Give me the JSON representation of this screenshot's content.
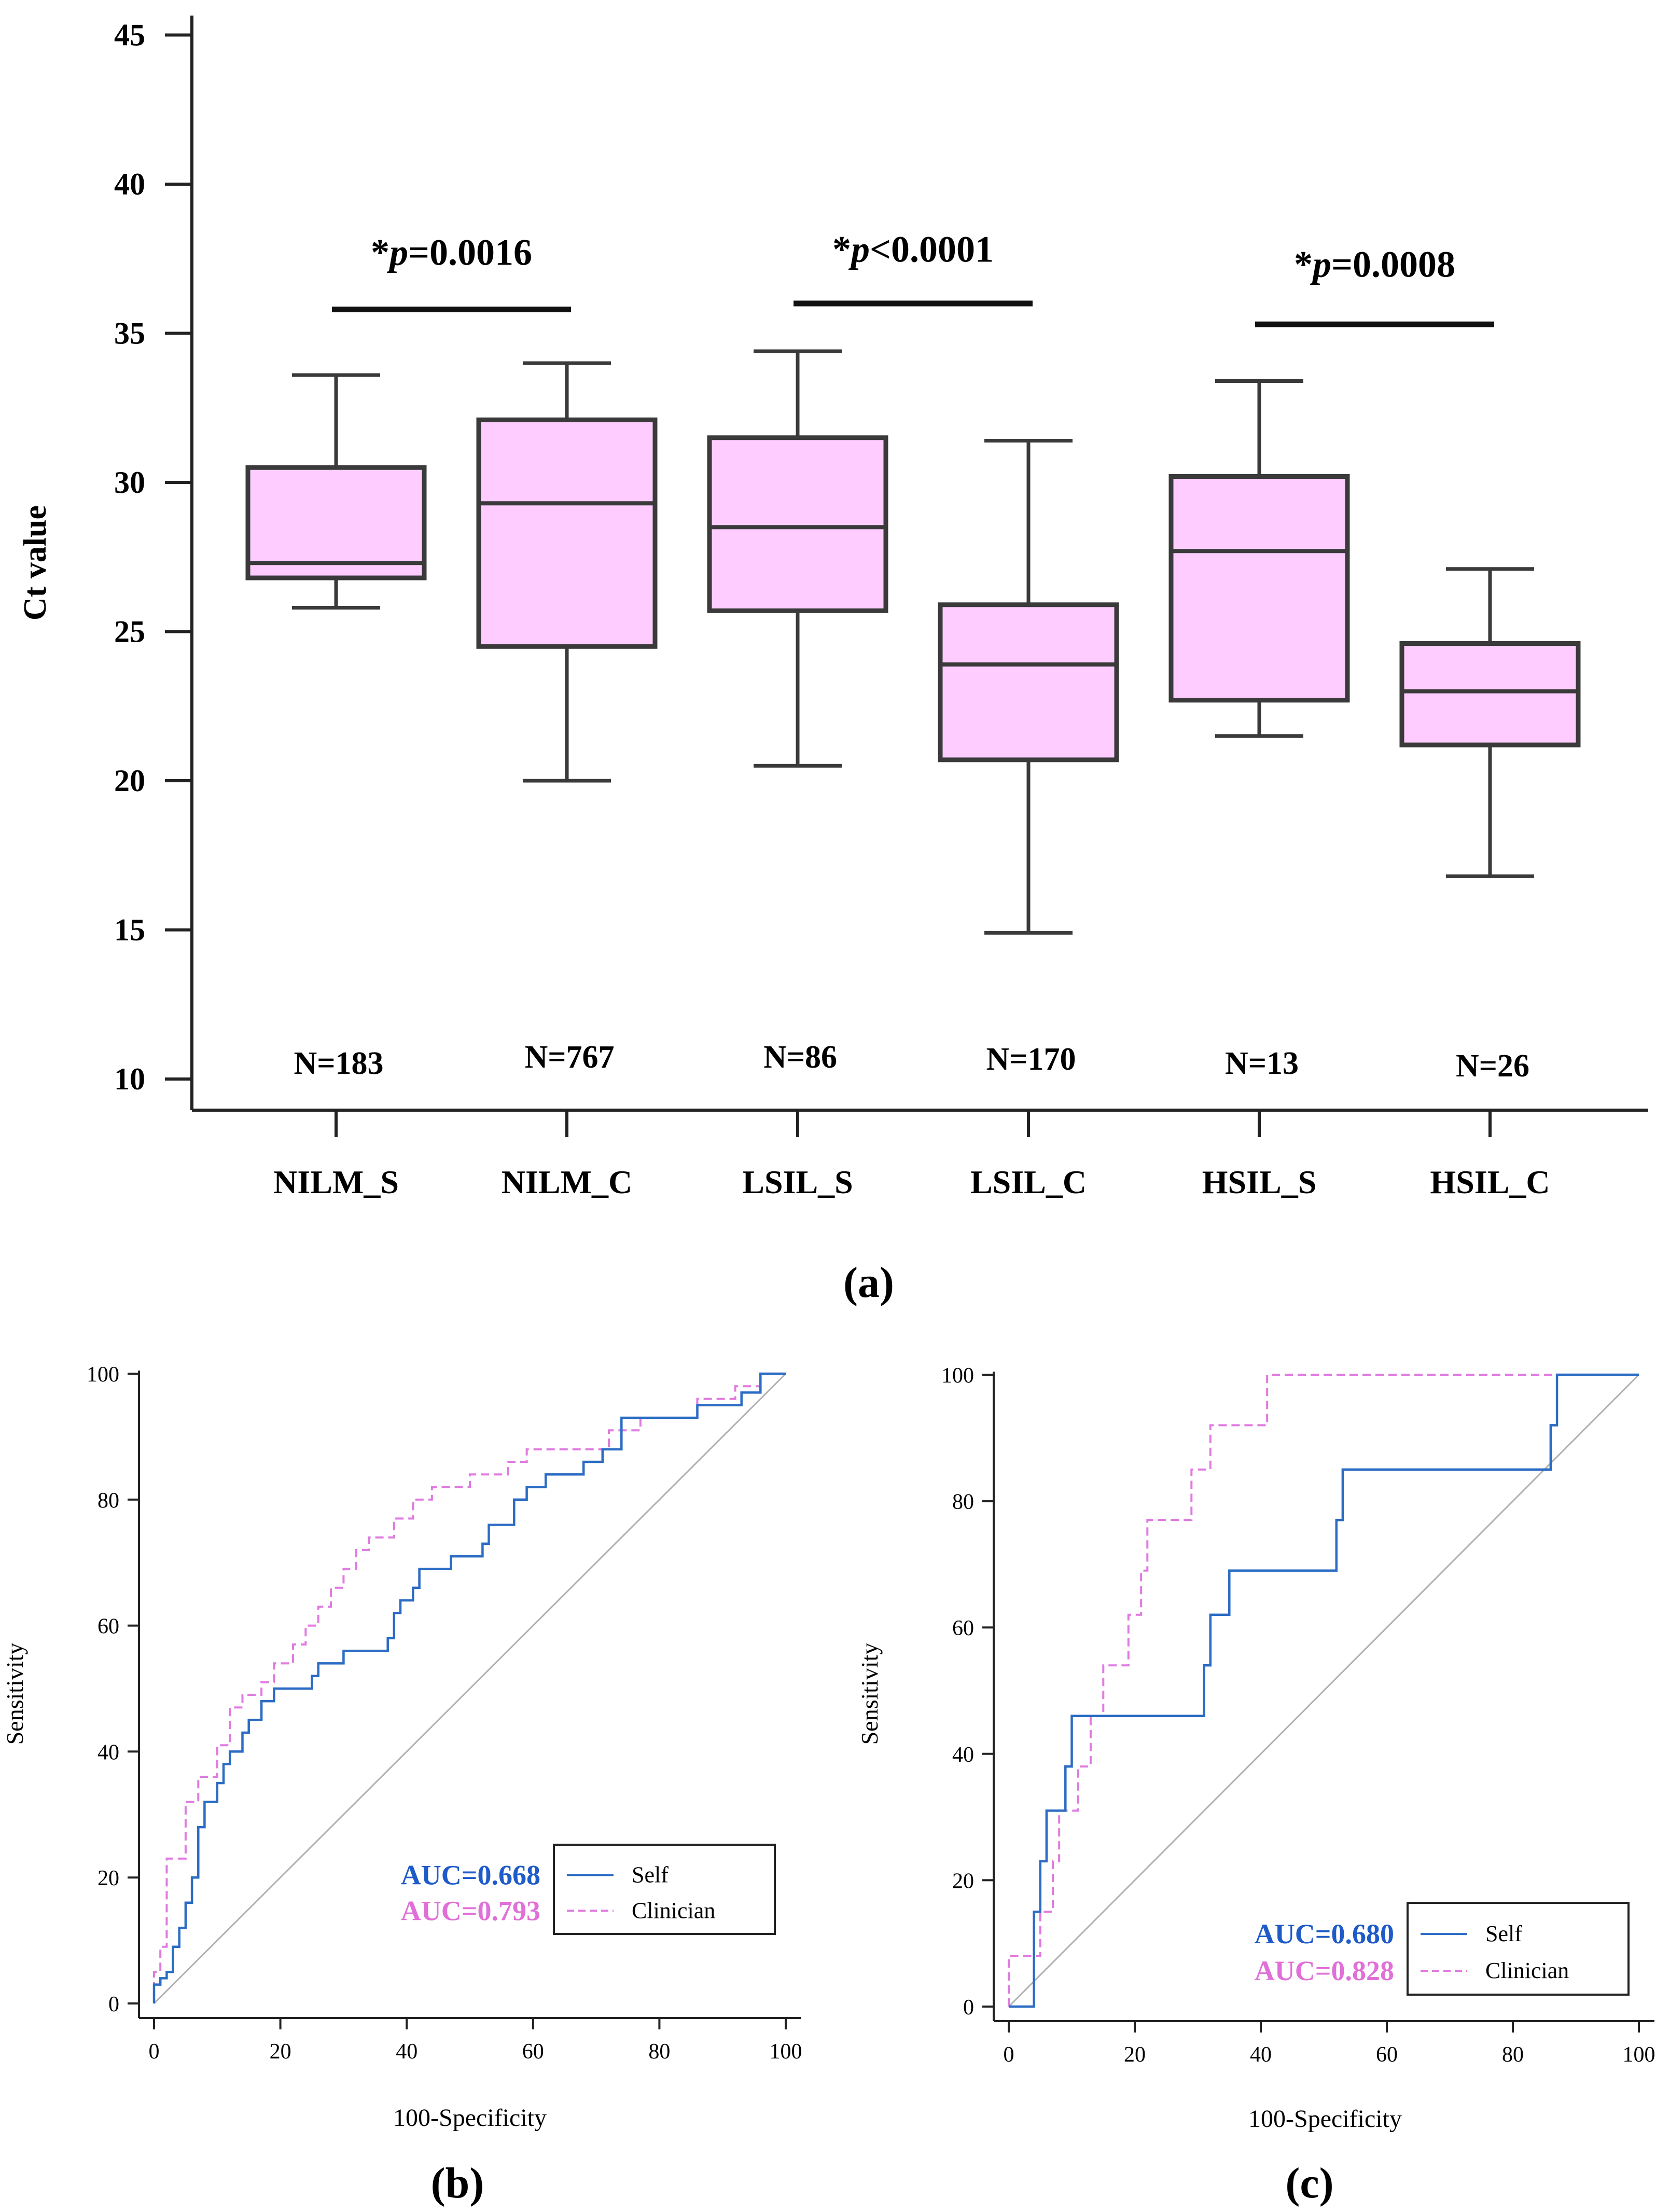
{
  "colors": {
    "box_fill": "#ffccff",
    "box_stroke": "#3a3a3a",
    "self_line": "#2b6cc4",
    "clinician_line": "#e07ae0",
    "self_auc_text": "#1f5bc8",
    "clinician_auc_text": "#e070d8",
    "diagonal": "#b0b0b0"
  },
  "chart_data": [
    {
      "type": "boxplot",
      "panel_label": "(a)",
      "ylabel": "Ct value",
      "ylim": [
        10,
        46
      ],
      "yticks": [
        "10",
        "15",
        "20",
        "25",
        "30",
        "35",
        "40",
        "45"
      ],
      "categories": [
        "NILM_S",
        "NILM_C",
        "LSIL_S",
        "LSIL_C",
        "HSIL_S",
        "HSIL_C"
      ],
      "counts": [
        "N=183",
        "N=767",
        "N=86",
        "N=170",
        "N=13",
        "N=26"
      ],
      "boxes": [
        {
          "min": 25.8,
          "q1": 26.8,
          "median": 27.3,
          "q3": 30.5,
          "max": 33.6
        },
        {
          "min": 20.0,
          "q1": 24.5,
          "median": 29.3,
          "q3": 32.1,
          "max": 34.0
        },
        {
          "min": 20.5,
          "q1": 25.7,
          "median": 28.5,
          "q3": 31.5,
          "max": 34.4
        },
        {
          "min": 14.9,
          "q1": 20.7,
          "median": 23.9,
          "q3": 25.9,
          "max": 31.4
        },
        {
          "min": 21.5,
          "q1": 22.7,
          "median": 27.7,
          "q3": 30.2,
          "max": 33.4
        },
        {
          "min": 16.8,
          "q1": 21.2,
          "median": 23.0,
          "q3": 24.6,
          "max": 27.1
        }
      ],
      "annotations": [
        {
          "star": "*",
          "p": "p",
          "rest": "=0.0016",
          "pair": [
            0,
            1
          ],
          "y": 35.8,
          "label_y": 37.3
        },
        {
          "star": "*",
          "p": "p",
          "rest": "<0.0001",
          "pair": [
            2,
            3
          ],
          "y": 36.0,
          "label_y": 37.4
        },
        {
          "star": "*",
          "p": "p",
          "rest": "=0.0008",
          "pair": [
            4,
            5
          ],
          "y": 35.3,
          "label_y": 36.9
        }
      ]
    },
    {
      "type": "line",
      "panel_label": "(b)",
      "xlabel": "100-Specificity",
      "ylabel": "Sensitivity",
      "xlim": [
        0,
        100
      ],
      "ylim": [
        0,
        100
      ],
      "xticks": [
        "0",
        "20",
        "40",
        "60",
        "80",
        "100"
      ],
      "yticks": [
        "0",
        "20",
        "40",
        "60",
        "80",
        "100"
      ],
      "legend": {
        "position": "bottom-right",
        "entries": [
          "Self",
          "Clinician"
        ]
      },
      "auc_labels": [
        "AUC=0.668",
        "AUC=0.793"
      ],
      "series": [
        {
          "name": "Self",
          "style": "solid",
          "points": [
            [
              0,
              0
            ],
            [
              0,
              3
            ],
            [
              1,
              3
            ],
            [
              1,
              4
            ],
            [
              2,
              4
            ],
            [
              2,
              5
            ],
            [
              3,
              5
            ],
            [
              3,
              9
            ],
            [
              4,
              9
            ],
            [
              4,
              12
            ],
            [
              5,
              12
            ],
            [
              5,
              16
            ],
            [
              6,
              16
            ],
            [
              6,
              20
            ],
            [
              7,
              20
            ],
            [
              7,
              28
            ],
            [
              8,
              28
            ],
            [
              8,
              32
            ],
            [
              10,
              32
            ],
            [
              10,
              35
            ],
            [
              11,
              35
            ],
            [
              11,
              38
            ],
            [
              12,
              38
            ],
            [
              12,
              40
            ],
            [
              14,
              40
            ],
            [
              14,
              43
            ],
            [
              15,
              43
            ],
            [
              15,
              45
            ],
            [
              17,
              45
            ],
            [
              17,
              48
            ],
            [
              19,
              48
            ],
            [
              19,
              50
            ],
            [
              25,
              50
            ],
            [
              25,
              52
            ],
            [
              26,
              52
            ],
            [
              26,
              54
            ],
            [
              30,
              54
            ],
            [
              30,
              56
            ],
            [
              37,
              56
            ],
            [
              37,
              58
            ],
            [
              38,
              58
            ],
            [
              38,
              62
            ],
            [
              39,
              62
            ],
            [
              39,
              64
            ],
            [
              41,
              64
            ],
            [
              41,
              66
            ],
            [
              42,
              66
            ],
            [
              42,
              69
            ],
            [
              47,
              69
            ],
            [
              47,
              71
            ],
            [
              52,
              71
            ],
            [
              52,
              73
            ],
            [
              53,
              73
            ],
            [
              53,
              76
            ],
            [
              57,
              76
            ],
            [
              57,
              80
            ],
            [
              59,
              80
            ],
            [
              59,
              82
            ],
            [
              62,
              82
            ],
            [
              62,
              84
            ],
            [
              68,
              84
            ],
            [
              68,
              86
            ],
            [
              71,
              86
            ],
            [
              71,
              88
            ],
            [
              74,
              88
            ],
            [
              74,
              93
            ],
            [
              86,
              93
            ],
            [
              86,
              95
            ],
            [
              93,
              95
            ],
            [
              93,
              97
            ],
            [
              96,
              97
            ],
            [
              96,
              100
            ],
            [
              100,
              100
            ]
          ]
        },
        {
          "name": "Clinician",
          "style": "dashed",
          "points": [
            [
              0,
              0
            ],
            [
              0,
              5
            ],
            [
              1,
              5
            ],
            [
              1,
              9
            ],
            [
              2,
              9
            ],
            [
              2,
              23
            ],
            [
              5,
              23
            ],
            [
              5,
              32
            ],
            [
              7,
              32
            ],
            [
              7,
              36
            ],
            [
              10,
              36
            ],
            [
              10,
              41
            ],
            [
              12,
              41
            ],
            [
              12,
              47
            ],
            [
              14,
              47
            ],
            [
              14,
              49
            ],
            [
              17,
              49
            ],
            [
              17,
              51
            ],
            [
              19,
              51
            ],
            [
              19,
              54
            ],
            [
              22,
              54
            ],
            [
              22,
              57
            ],
            [
              24,
              57
            ],
            [
              24,
              60
            ],
            [
              26,
              60
            ],
            [
              26,
              63
            ],
            [
              28,
              63
            ],
            [
              28,
              66
            ],
            [
              30,
              66
            ],
            [
              30,
              69
            ],
            [
              32,
              69
            ],
            [
              32,
              72
            ],
            [
              34,
              72
            ],
            [
              34,
              74
            ],
            [
              38,
              74
            ],
            [
              38,
              77
            ],
            [
              41,
              77
            ],
            [
              41,
              80
            ],
            [
              44,
              80
            ],
            [
              44,
              82
            ],
            [
              50,
              82
            ],
            [
              50,
              84
            ],
            [
              56,
              84
            ],
            [
              56,
              86
            ],
            [
              59,
              86
            ],
            [
              59,
              88
            ],
            [
              72,
              88
            ],
            [
              72,
              91
            ],
            [
              77,
              91
            ],
            [
              77,
              93
            ],
            [
              86,
              93
            ],
            [
              86,
              96
            ],
            [
              92,
              96
            ],
            [
              92,
              98
            ],
            [
              96,
              98
            ],
            [
              96,
              100
            ],
            [
              100,
              100
            ]
          ]
        }
      ]
    },
    {
      "type": "line",
      "panel_label": "(c)",
      "xlabel": "100-Specificity",
      "ylabel": "Sensitivity",
      "xlim": [
        0,
        100
      ],
      "ylim": [
        0,
        100
      ],
      "xticks": [
        "0",
        "20",
        "40",
        "60",
        "80",
        "100"
      ],
      "yticks": [
        "0",
        "20",
        "40",
        "60",
        "80",
        "100"
      ],
      "legend": {
        "position": "bottom-right",
        "entries": [
          "Self",
          "Clinician"
        ]
      },
      "auc_labels": [
        "AUC=0.680",
        "AUC=0.828"
      ],
      "series": [
        {
          "name": "Self",
          "style": "solid",
          "points": [
            [
              0,
              0
            ],
            [
              4,
              0
            ],
            [
              4,
              15
            ],
            [
              5,
              15
            ],
            [
              5,
              23
            ],
            [
              6,
              23
            ],
            [
              6,
              31
            ],
            [
              9,
              31
            ],
            [
              9,
              38
            ],
            [
              10,
              38
            ],
            [
              10,
              46
            ],
            [
              31,
              46
            ],
            [
              31,
              54
            ],
            [
              32,
              54
            ],
            [
              32,
              62
            ],
            [
              35,
              62
            ],
            [
              35,
              69
            ],
            [
              52,
              69
            ],
            [
              52,
              77
            ],
            [
              53,
              77
            ],
            [
              53,
              85
            ],
            [
              86,
              85
            ],
            [
              86,
              92
            ],
            [
              87,
              92
            ],
            [
              87,
              100
            ],
            [
              100,
              100
            ]
          ]
        },
        {
          "name": "Clinician",
          "style": "dashed",
          "points": [
            [
              0,
              0
            ],
            [
              0,
              8
            ],
            [
              5,
              8
            ],
            [
              5,
              15
            ],
            [
              7,
              15
            ],
            [
              7,
              23
            ],
            [
              8,
              23
            ],
            [
              8,
              31
            ],
            [
              11,
              31
            ],
            [
              11,
              38
            ],
            [
              13,
              38
            ],
            [
              13,
              46
            ],
            [
              15,
              46
            ],
            [
              15,
              54
            ],
            [
              19,
              54
            ],
            [
              19,
              62
            ],
            [
              21,
              62
            ],
            [
              21,
              69
            ],
            [
              22,
              69
            ],
            [
              22,
              77
            ],
            [
              29,
              77
            ],
            [
              29,
              85
            ],
            [
              32,
              85
            ],
            [
              32,
              92
            ],
            [
              41,
              92
            ],
            [
              41,
              100
            ],
            [
              100,
              100
            ]
          ]
        }
      ]
    }
  ]
}
